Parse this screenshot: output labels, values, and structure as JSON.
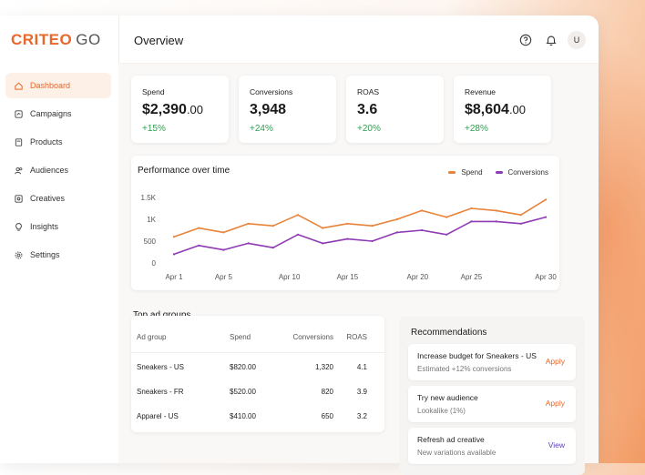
{
  "brand": {
    "name": "CRITEO",
    "suffix": "GO"
  },
  "page": {
    "title": "Overview"
  },
  "sidebar": {
    "items": [
      {
        "label": "Dashboard",
        "icon": "home-icon",
        "active": true
      },
      {
        "label": "Campaigns",
        "icon": "campaigns-icon"
      },
      {
        "label": "Products",
        "icon": "box-icon"
      },
      {
        "label": "Audiences",
        "icon": "users-icon"
      },
      {
        "label": "Creatives",
        "icon": "image-icon"
      },
      {
        "label": "Insights",
        "icon": "bulb-icon"
      },
      {
        "label": "Settings",
        "icon": "gear-icon"
      }
    ]
  },
  "topbar": {
    "avatar": "U"
  },
  "kpis": [
    {
      "label": "Spend",
      "value": "$2,390",
      "decimal": ".00",
      "change": "+15%"
    },
    {
      "label": "Conversions",
      "value": "3,948",
      "decimal": "",
      "change": "+24%"
    },
    {
      "label": "ROAS",
      "value": "3.6",
      "decimal": "",
      "change": "+20%"
    },
    {
      "label": "Revenue",
      "value": "$8,604",
      "decimal": ".00",
      "change": "+28%"
    }
  ],
  "performance": {
    "title": "Performance over time"
  },
  "chart_data": {
    "type": "line",
    "x": [
      "Apr 1",
      "Apr 3",
      "Apr 5",
      "Apr 7",
      "Apr 9",
      "Apr 11",
      "Apr 13",
      "Apr 15",
      "Apr 17",
      "Apr 19",
      "Apr 21",
      "Apr 23",
      "Apr 25",
      "Apr 27",
      "Apr 29",
      "Apr 30"
    ],
    "xticks": [
      "Apr 1",
      "Apr 5",
      "Apr 10",
      "Apr 15",
      "Apr 20",
      "Apr 25",
      "Apr 30"
    ],
    "yticks": [
      "0",
      "500",
      "1K",
      "1.5K"
    ],
    "ylim": [
      0,
      1500
    ],
    "series": [
      {
        "name": "Spend",
        "color": "#e8833a",
        "values": [
          600,
          800,
          700,
          900,
          850,
          1100,
          800,
          900,
          850,
          1000,
          1200,
          1050,
          1250,
          1200,
          1100,
          1450
        ]
      },
      {
        "name": "Conversions",
        "color": "#8e3bb4",
        "values": [
          200,
          400,
          300,
          450,
          350,
          650,
          450,
          550,
          500,
          700,
          750,
          650,
          950,
          950,
          900,
          1050
        ]
      }
    ],
    "legend_position": "top-right"
  },
  "top_ad_groups": {
    "title": "Top ad groups",
    "columns": [
      "Ad group",
      "Spend",
      "Conversions",
      "ROAS"
    ],
    "rows": [
      [
        "Sneakers - US",
        "$820.00",
        "1,320",
        "4.1"
      ],
      [
        "Sneakers - FR",
        "$520.00",
        "820",
        "3.9"
      ],
      [
        "Apparel - US",
        "$410.00",
        "650",
        "3.2"
      ]
    ]
  },
  "recommendations": {
    "title": "Recommendations",
    "items": [
      {
        "title": "Increase budget for Sneakers - US",
        "subtitle": "Estimated +12% conversions",
        "action": "Apply",
        "action_color": "#e8672a"
      },
      {
        "title": "Try new audience",
        "subtitle": "Lookalike (1%)",
        "action": "Apply",
        "action_color": "#e8672a"
      },
      {
        "title": "Refresh ad creative",
        "subtitle": "New variations available",
        "action": "View",
        "action_color": "#5a3fc0"
      }
    ]
  }
}
